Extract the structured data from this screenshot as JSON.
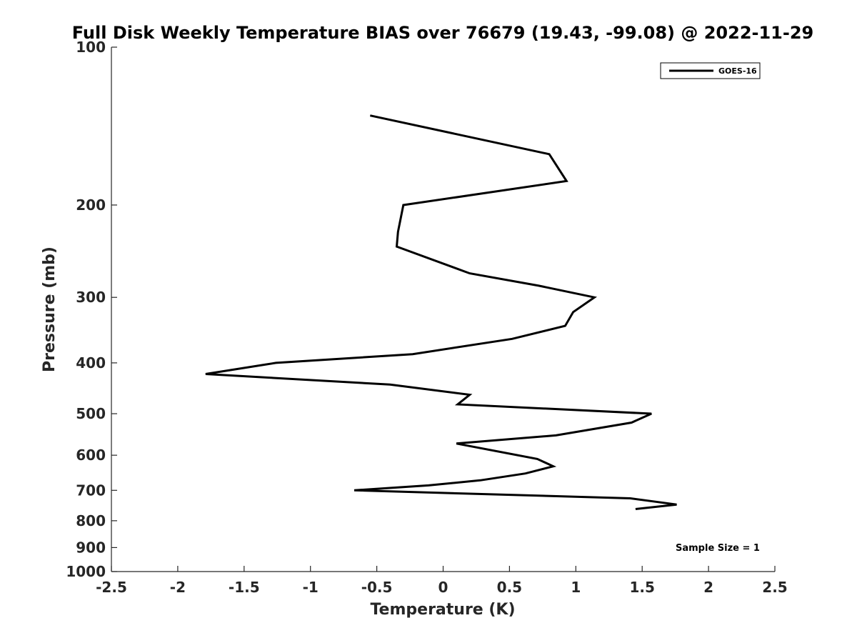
{
  "chart_data": {
    "type": "line",
    "title": "Full Disk Weekly Temperature BIAS over 76679 (19.43, -99.08) @ 2022-11-29",
    "xlabel": "Temperature (K)",
    "ylabel": "Pressure (mb)",
    "xlim": [
      -2.5,
      2.5
    ],
    "ylim": [
      1000,
      100
    ],
    "yscale": "log",
    "y_reversed": true,
    "x_ticks": [
      -2.5,
      -2,
      -1.5,
      -1,
      -0.5,
      0,
      0.5,
      1,
      1.5,
      2,
      2.5
    ],
    "x_tick_labels": [
      "-2.5",
      "-2",
      "-1.5",
      "-1",
      "-0.5",
      "0",
      "0.5",
      "1",
      "1.5",
      "2",
      "2.5"
    ],
    "y_ticks": [
      100,
      200,
      300,
      400,
      500,
      600,
      700,
      800,
      900,
      1000
    ],
    "y_tick_labels": [
      "100",
      "200",
      "300",
      "400",
      "500",
      "600",
      "700",
      "800",
      "900",
      "1000"
    ],
    "grid": false,
    "legend_position": "top-right",
    "series": [
      {
        "name": "GOES-16",
        "color": "#000000",
        "points": [
          {
            "x": -0.55,
            "y": 135
          },
          {
            "x": 0.8,
            "y": 160
          },
          {
            "x": 0.93,
            "y": 180
          },
          {
            "x": -0.3,
            "y": 200
          },
          {
            "x": -0.34,
            "y": 225
          },
          {
            "x": -0.35,
            "y": 240
          },
          {
            "x": 0.2,
            "y": 270
          },
          {
            "x": 0.72,
            "y": 285
          },
          {
            "x": 1.14,
            "y": 300
          },
          {
            "x": 0.98,
            "y": 320
          },
          {
            "x": 0.92,
            "y": 340
          },
          {
            "x": 0.52,
            "y": 360
          },
          {
            "x": -0.23,
            "y": 385
          },
          {
            "x": -1.26,
            "y": 400
          },
          {
            "x": -1.79,
            "y": 420
          },
          {
            "x": -0.4,
            "y": 440
          },
          {
            "x": 0.2,
            "y": 460
          },
          {
            "x": 0.11,
            "y": 480
          },
          {
            "x": 1.57,
            "y": 500
          },
          {
            "x": 1.42,
            "y": 520
          },
          {
            "x": 0.85,
            "y": 550
          },
          {
            "x": 0.1,
            "y": 570
          },
          {
            "x": 0.71,
            "y": 610
          },
          {
            "x": 0.83,
            "y": 630
          },
          {
            "x": 0.62,
            "y": 650
          },
          {
            "x": 0.28,
            "y": 670
          },
          {
            "x": -0.11,
            "y": 685
          },
          {
            "x": -0.67,
            "y": 700
          },
          {
            "x": 1.41,
            "y": 725
          },
          {
            "x": 1.76,
            "y": 745
          },
          {
            "x": 1.45,
            "y": 760
          }
        ]
      }
    ],
    "annotations": [
      {
        "text": "Sample Size = 1",
        "position": "bottom-right"
      }
    ]
  }
}
